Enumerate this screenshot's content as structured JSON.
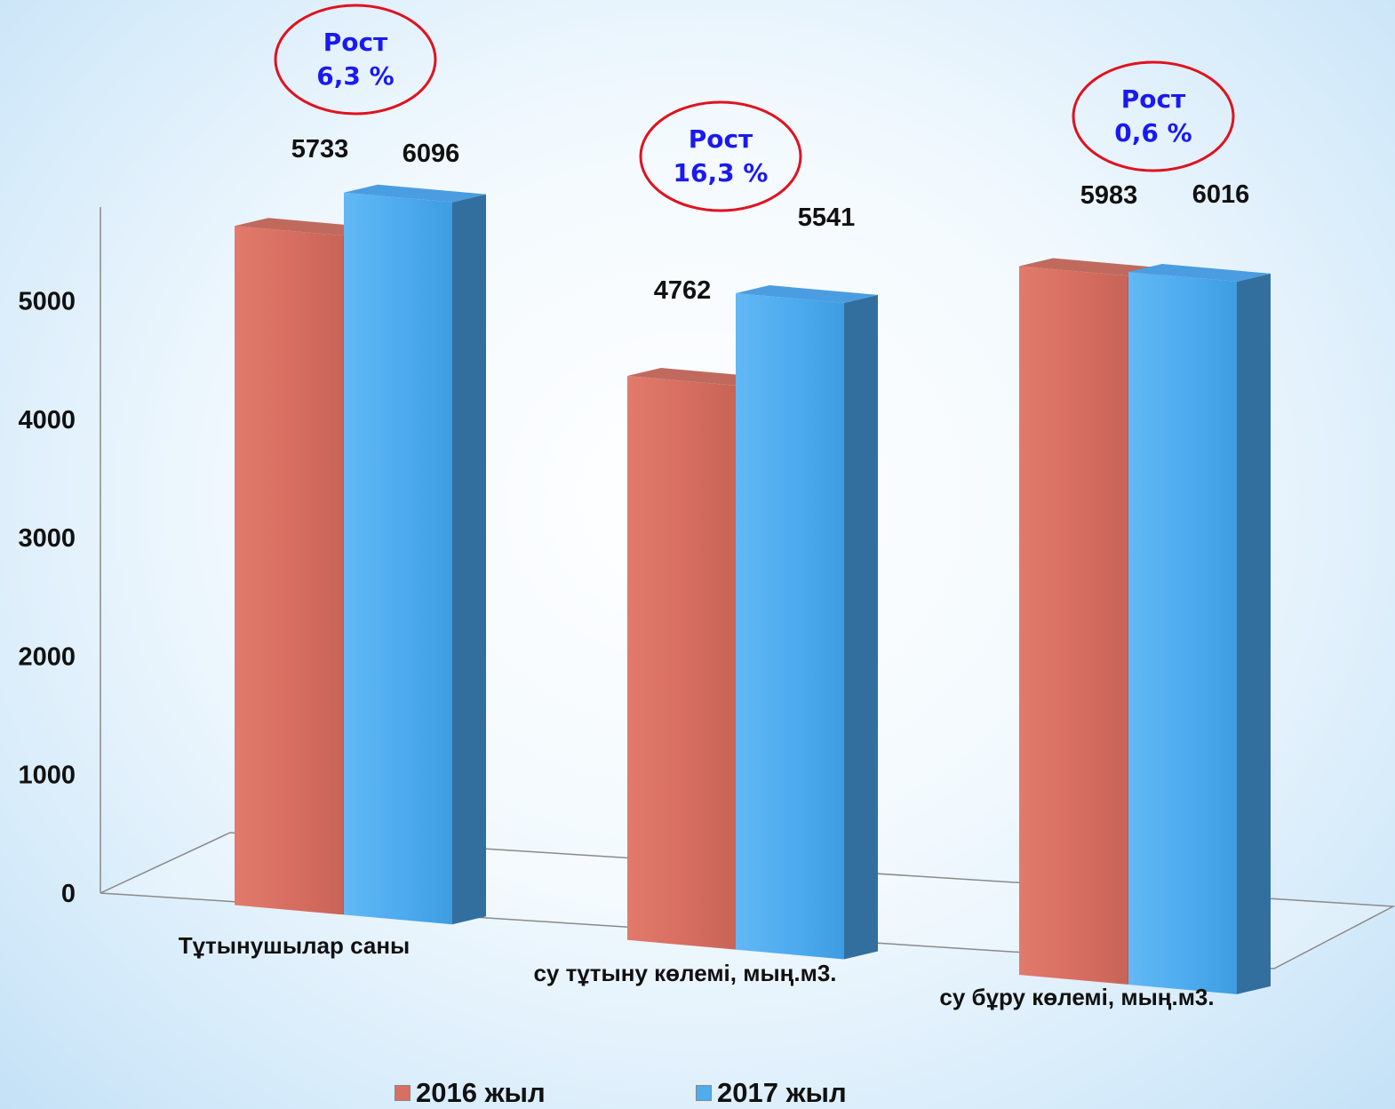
{
  "chart_data": {
    "type": "bar",
    "categories": [
      "Тұтынушылар саны",
      "су тұтыну көлемі, мың.м3.",
      "су бұру көлемі, мың.м3."
    ],
    "series": [
      {
        "name": "2016 жыл",
        "values": [
          5733,
          4762,
          5983
        ],
        "color": "#d86f62"
      },
      {
        "name": "2017 жыл",
        "values": [
          6096,
          5541,
          6016
        ],
        "color": "#4eacef"
      }
    ],
    "yticks": [
      0,
      1000,
      2000,
      3000,
      4000,
      5000
    ],
    "growth": [
      {
        "label": "Рост",
        "value": "6,3 %"
      },
      {
        "label": "Рост",
        "value": "16,3 %"
      },
      {
        "label": "Рост",
        "value": "0,6 %"
      }
    ],
    "ylim": [
      0,
      5700
    ],
    "legend_position": "bottom"
  }
}
